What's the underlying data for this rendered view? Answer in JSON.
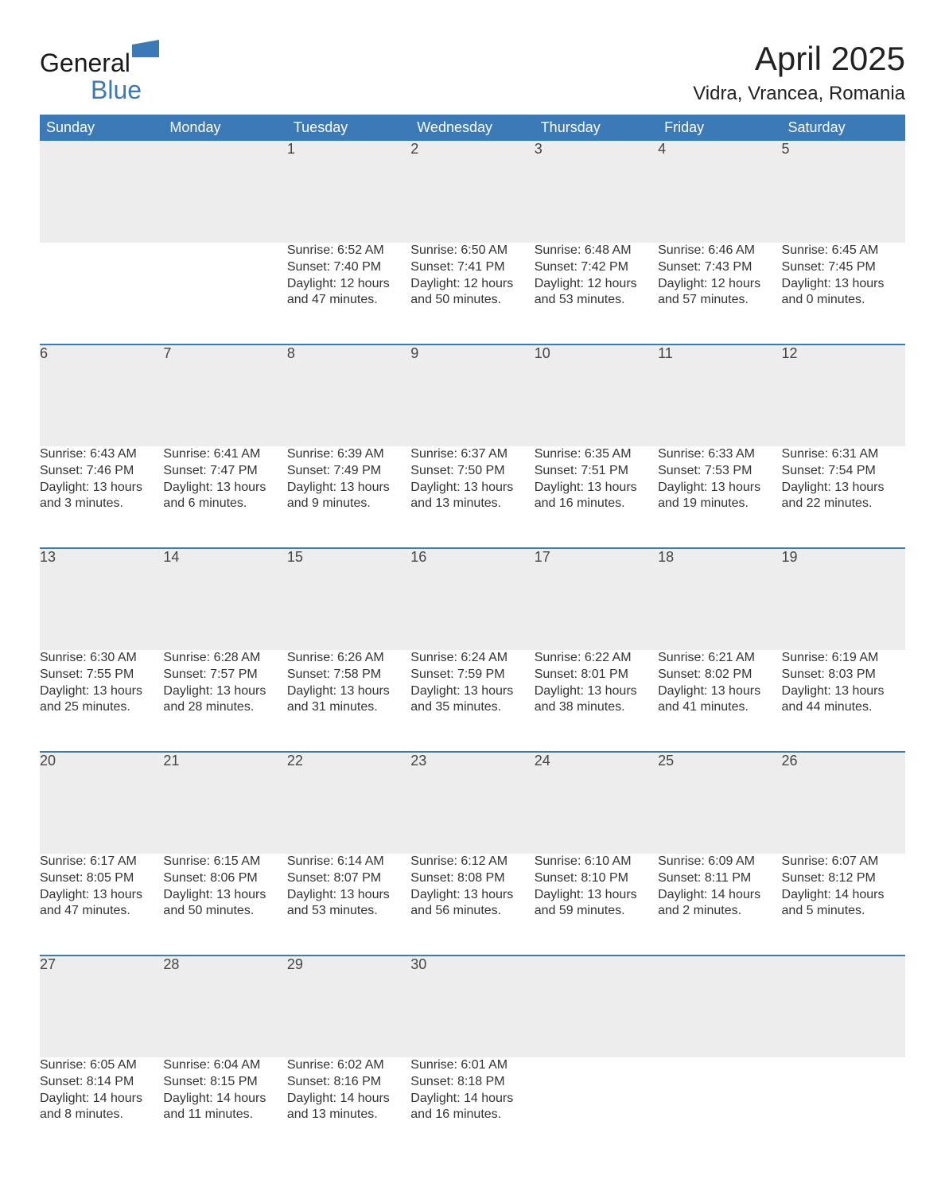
{
  "brand": {
    "word1": "General",
    "word2": "Blue"
  },
  "title": {
    "month": "April 2025",
    "location": "Vidra, Vrancea, Romania"
  },
  "colors": {
    "header_bg": "#3b79b7",
    "header_text": "#ffffff",
    "daynum_bg": "#ededed",
    "rule": "#3b79b7",
    "body_text": "#333333",
    "page_bg": "#ffffff"
  },
  "weekdays": [
    "Sunday",
    "Monday",
    "Tuesday",
    "Wednesday",
    "Thursday",
    "Friday",
    "Saturday"
  ],
  "weeks": [
    [
      null,
      null,
      {
        "n": "1",
        "sr": "Sunrise: 6:52 AM",
        "ss": "Sunset: 7:40 PM",
        "d1": "Daylight: 12 hours",
        "d2": "and 47 minutes."
      },
      {
        "n": "2",
        "sr": "Sunrise: 6:50 AM",
        "ss": "Sunset: 7:41 PM",
        "d1": "Daylight: 12 hours",
        "d2": "and 50 minutes."
      },
      {
        "n": "3",
        "sr": "Sunrise: 6:48 AM",
        "ss": "Sunset: 7:42 PM",
        "d1": "Daylight: 12 hours",
        "d2": "and 53 minutes."
      },
      {
        "n": "4",
        "sr": "Sunrise: 6:46 AM",
        "ss": "Sunset: 7:43 PM",
        "d1": "Daylight: 12 hours",
        "d2": "and 57 minutes."
      },
      {
        "n": "5",
        "sr": "Sunrise: 6:45 AM",
        "ss": "Sunset: 7:45 PM",
        "d1": "Daylight: 13 hours",
        "d2": "and 0 minutes."
      }
    ],
    [
      {
        "n": "6",
        "sr": "Sunrise: 6:43 AM",
        "ss": "Sunset: 7:46 PM",
        "d1": "Daylight: 13 hours",
        "d2": "and 3 minutes."
      },
      {
        "n": "7",
        "sr": "Sunrise: 6:41 AM",
        "ss": "Sunset: 7:47 PM",
        "d1": "Daylight: 13 hours",
        "d2": "and 6 minutes."
      },
      {
        "n": "8",
        "sr": "Sunrise: 6:39 AM",
        "ss": "Sunset: 7:49 PM",
        "d1": "Daylight: 13 hours",
        "d2": "and 9 minutes."
      },
      {
        "n": "9",
        "sr": "Sunrise: 6:37 AM",
        "ss": "Sunset: 7:50 PM",
        "d1": "Daylight: 13 hours",
        "d2": "and 13 minutes."
      },
      {
        "n": "10",
        "sr": "Sunrise: 6:35 AM",
        "ss": "Sunset: 7:51 PM",
        "d1": "Daylight: 13 hours",
        "d2": "and 16 minutes."
      },
      {
        "n": "11",
        "sr": "Sunrise: 6:33 AM",
        "ss": "Sunset: 7:53 PM",
        "d1": "Daylight: 13 hours",
        "d2": "and 19 minutes."
      },
      {
        "n": "12",
        "sr": "Sunrise: 6:31 AM",
        "ss": "Sunset: 7:54 PM",
        "d1": "Daylight: 13 hours",
        "d2": "and 22 minutes."
      }
    ],
    [
      {
        "n": "13",
        "sr": "Sunrise: 6:30 AM",
        "ss": "Sunset: 7:55 PM",
        "d1": "Daylight: 13 hours",
        "d2": "and 25 minutes."
      },
      {
        "n": "14",
        "sr": "Sunrise: 6:28 AM",
        "ss": "Sunset: 7:57 PM",
        "d1": "Daylight: 13 hours",
        "d2": "and 28 minutes."
      },
      {
        "n": "15",
        "sr": "Sunrise: 6:26 AM",
        "ss": "Sunset: 7:58 PM",
        "d1": "Daylight: 13 hours",
        "d2": "and 31 minutes."
      },
      {
        "n": "16",
        "sr": "Sunrise: 6:24 AM",
        "ss": "Sunset: 7:59 PM",
        "d1": "Daylight: 13 hours",
        "d2": "and 35 minutes."
      },
      {
        "n": "17",
        "sr": "Sunrise: 6:22 AM",
        "ss": "Sunset: 8:01 PM",
        "d1": "Daylight: 13 hours",
        "d2": "and 38 minutes."
      },
      {
        "n": "18",
        "sr": "Sunrise: 6:21 AM",
        "ss": "Sunset: 8:02 PM",
        "d1": "Daylight: 13 hours",
        "d2": "and 41 minutes."
      },
      {
        "n": "19",
        "sr": "Sunrise: 6:19 AM",
        "ss": "Sunset: 8:03 PM",
        "d1": "Daylight: 13 hours",
        "d2": "and 44 minutes."
      }
    ],
    [
      {
        "n": "20",
        "sr": "Sunrise: 6:17 AM",
        "ss": "Sunset: 8:05 PM",
        "d1": "Daylight: 13 hours",
        "d2": "and 47 minutes."
      },
      {
        "n": "21",
        "sr": "Sunrise: 6:15 AM",
        "ss": "Sunset: 8:06 PM",
        "d1": "Daylight: 13 hours",
        "d2": "and 50 minutes."
      },
      {
        "n": "22",
        "sr": "Sunrise: 6:14 AM",
        "ss": "Sunset: 8:07 PM",
        "d1": "Daylight: 13 hours",
        "d2": "and 53 minutes."
      },
      {
        "n": "23",
        "sr": "Sunrise: 6:12 AM",
        "ss": "Sunset: 8:08 PM",
        "d1": "Daylight: 13 hours",
        "d2": "and 56 minutes."
      },
      {
        "n": "24",
        "sr": "Sunrise: 6:10 AM",
        "ss": "Sunset: 8:10 PM",
        "d1": "Daylight: 13 hours",
        "d2": "and 59 minutes."
      },
      {
        "n": "25",
        "sr": "Sunrise: 6:09 AM",
        "ss": "Sunset: 8:11 PM",
        "d1": "Daylight: 14 hours",
        "d2": "and 2 minutes."
      },
      {
        "n": "26",
        "sr": "Sunrise: 6:07 AM",
        "ss": "Sunset: 8:12 PM",
        "d1": "Daylight: 14 hours",
        "d2": "and 5 minutes."
      }
    ],
    [
      {
        "n": "27",
        "sr": "Sunrise: 6:05 AM",
        "ss": "Sunset: 8:14 PM",
        "d1": "Daylight: 14 hours",
        "d2": "and 8 minutes."
      },
      {
        "n": "28",
        "sr": "Sunrise: 6:04 AM",
        "ss": "Sunset: 8:15 PM",
        "d1": "Daylight: 14 hours",
        "d2": "and 11 minutes."
      },
      {
        "n": "29",
        "sr": "Sunrise: 6:02 AM",
        "ss": "Sunset: 8:16 PM",
        "d1": "Daylight: 14 hours",
        "d2": "and 13 minutes."
      },
      {
        "n": "30",
        "sr": "Sunrise: 6:01 AM",
        "ss": "Sunset: 8:18 PM",
        "d1": "Daylight: 14 hours",
        "d2": "and 16 minutes."
      },
      null,
      null,
      null
    ]
  ]
}
